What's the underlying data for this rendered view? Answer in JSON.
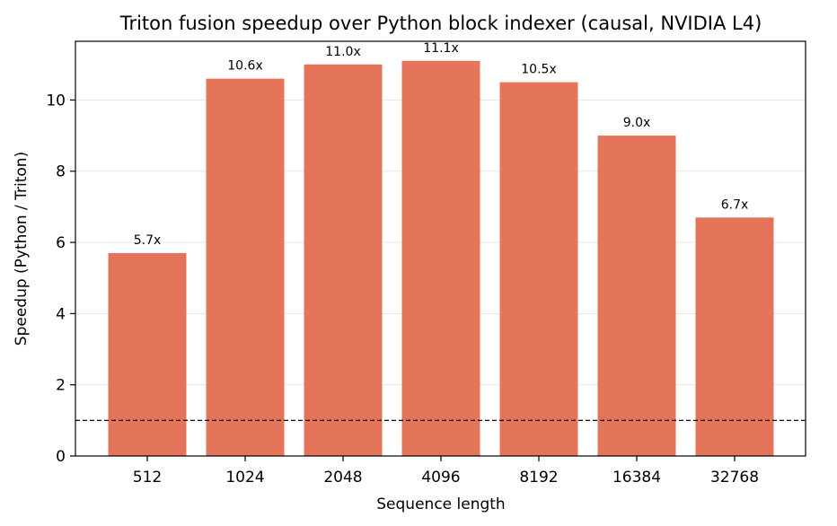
{
  "chart_data": {
    "type": "bar",
    "title": "Triton fusion speedup over Python block indexer (causal, NVIDIA L4)",
    "xlabel": "Sequence length",
    "ylabel": "Speedup (Python / Triton)",
    "categories": [
      "512",
      "1024",
      "2048",
      "4096",
      "8192",
      "16384",
      "32768"
    ],
    "values": [
      5.7,
      10.6,
      11.0,
      11.1,
      10.5,
      9.0,
      6.7
    ],
    "data_labels": [
      "5.7x",
      "10.6x",
      "11.0x",
      "11.1x",
      "10.5x",
      "9.0x",
      "6.7x"
    ],
    "ylim": [
      0,
      11.65
    ],
    "yticks": [
      0,
      2,
      4,
      6,
      8,
      10
    ],
    "grid": "y",
    "reference_line": 1.0,
    "colors": {
      "bar": "#e4745a",
      "grid": "#e5e5e5",
      "reference": "#000000"
    }
  }
}
